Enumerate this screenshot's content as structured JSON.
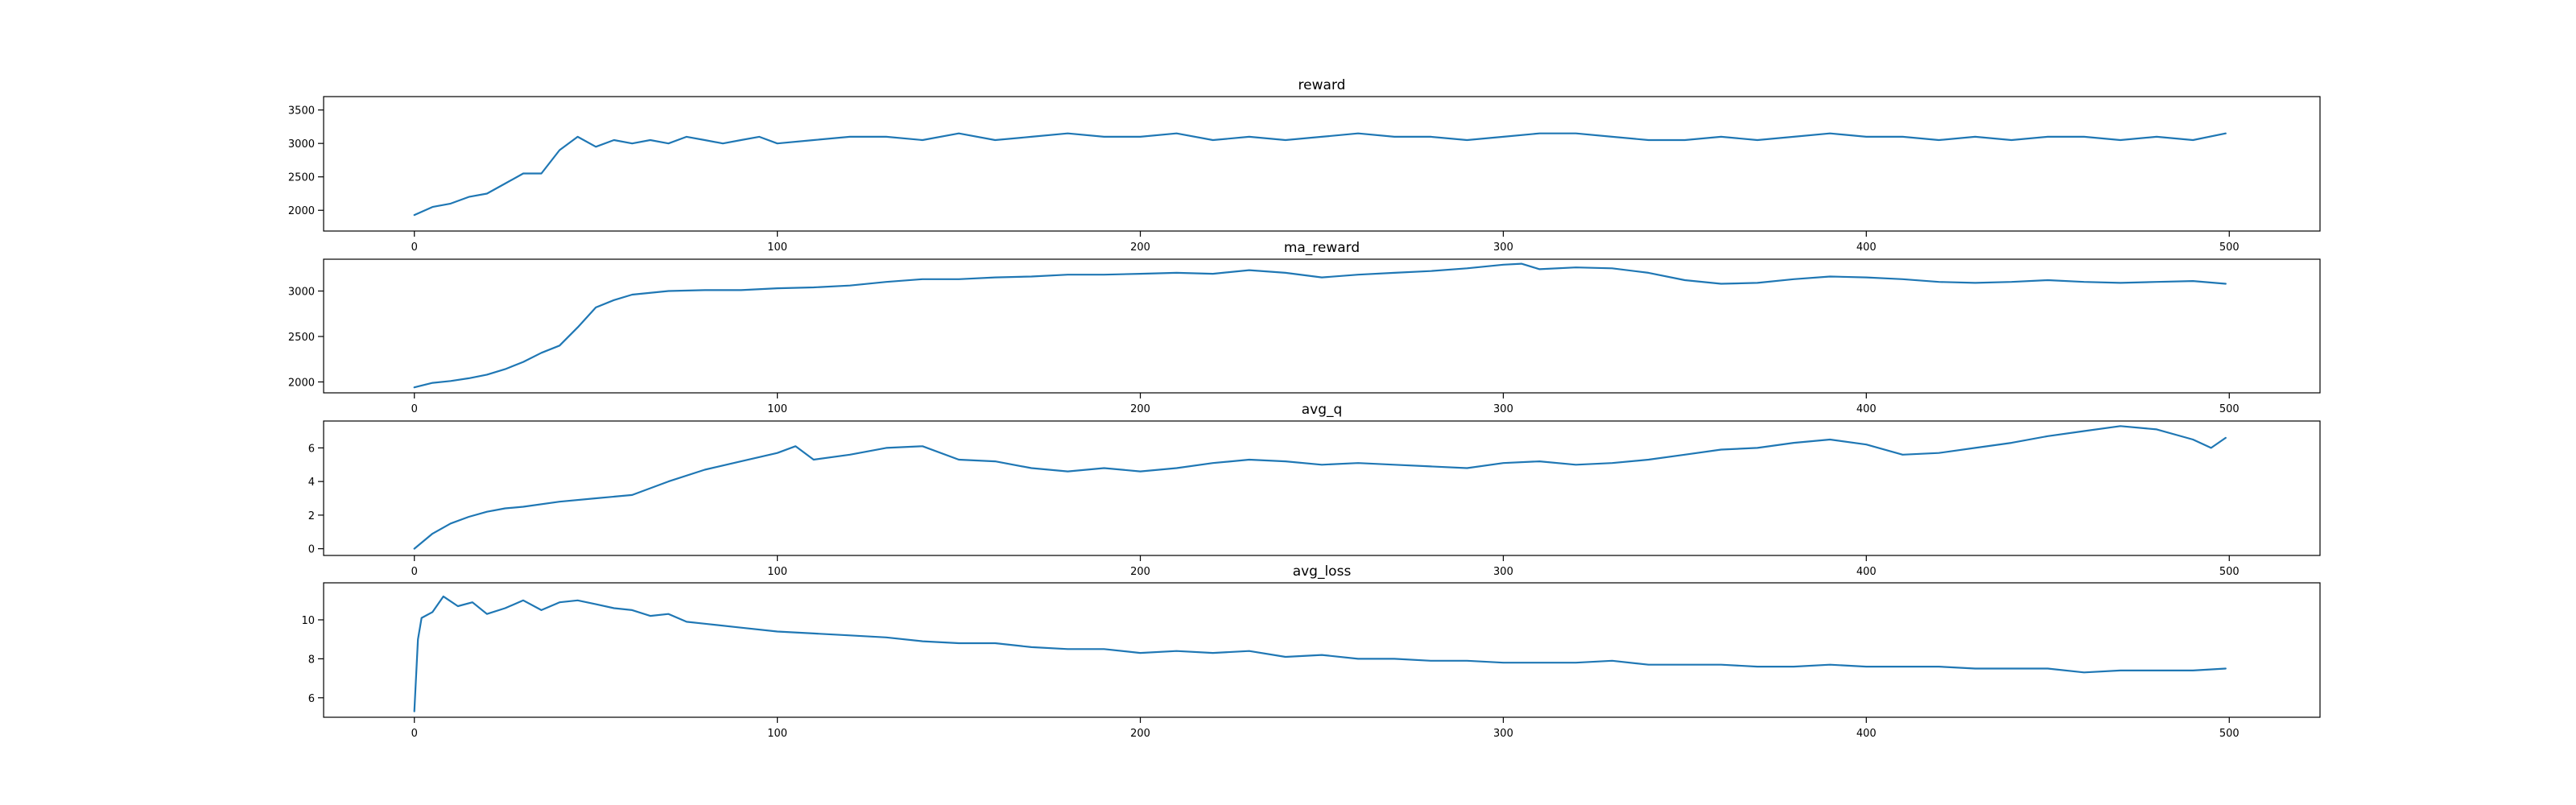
{
  "colors": {
    "series": "#1f77b4",
    "axes": "#000000",
    "background": "#ffffff"
  },
  "chart_data": [
    {
      "type": "line",
      "title": "reward",
      "xlabel": "",
      "ylabel": "",
      "xlim": [
        -25,
        525
      ],
      "ylim": [
        1690,
        3700
      ],
      "xticks": [
        0,
        100,
        200,
        300,
        400,
        500
      ],
      "xtick_labels": [
        "0",
        "100",
        "200",
        "300",
        "400",
        "500"
      ],
      "yticks": [
        2000,
        2500,
        3000,
        3500
      ],
      "ytick_labels": [
        "2000",
        "2500",
        "3000",
        "3500"
      ],
      "grid": false,
      "series": [
        {
          "x": [
            0,
            5,
            10,
            15,
            20,
            25,
            30,
            35,
            40,
            45,
            50,
            55,
            60,
            65,
            70,
            75,
            80,
            85,
            90,
            95,
            100,
            110,
            120,
            130,
            140,
            150,
            160,
            170,
            180,
            190,
            200,
            210,
            220,
            230,
            240,
            250,
            260,
            270,
            280,
            290,
            300,
            310,
            320,
            330,
            340,
            350,
            360,
            370,
            380,
            390,
            400,
            410,
            420,
            430,
            440,
            450,
            460,
            470,
            480,
            490,
            499
          ],
          "y": [
            1930,
            2050,
            2100,
            2200,
            2250,
            2400,
            2550,
            2550,
            2900,
            3100,
            2950,
            3050,
            3000,
            3050,
            3000,
            3100,
            3050,
            3000,
            3050,
            3100,
            3000,
            3050,
            3100,
            3100,
            3050,
            3150,
            3050,
            3100,
            3150,
            3100,
            3100,
            3150,
            3050,
            3100,
            3050,
            3100,
            3150,
            3100,
            3100,
            3050,
            3100,
            3150,
            3150,
            3100,
            3050,
            3050,
            3100,
            3050,
            3100,
            3150,
            3100,
            3100,
            3050,
            3100,
            3050,
            3100,
            3100,
            3050,
            3100,
            3050,
            3150
          ]
        }
      ]
    },
    {
      "type": "line",
      "title": "ma_reward",
      "xlabel": "",
      "ylabel": "",
      "xlim": [
        -25,
        525
      ],
      "ylim": [
        1880,
        3350
      ],
      "xticks": [
        0,
        100,
        200,
        300,
        400,
        500
      ],
      "xtick_labels": [
        "0",
        "100",
        "200",
        "300",
        "400",
        "500"
      ],
      "yticks": [
        2000,
        2500,
        3000
      ],
      "ytick_labels": [
        "2000",
        "2500",
        "3000"
      ],
      "grid": false,
      "series": [
        {
          "x": [
            0,
            5,
            10,
            15,
            20,
            25,
            30,
            35,
            40,
            45,
            50,
            55,
            60,
            70,
            80,
            90,
            100,
            110,
            120,
            130,
            140,
            150,
            160,
            170,
            180,
            190,
            200,
            210,
            220,
            230,
            240,
            250,
            260,
            270,
            280,
            290,
            300,
            305,
            310,
            320,
            330,
            340,
            350,
            360,
            370,
            380,
            390,
            400,
            410,
            420,
            430,
            440,
            450,
            460,
            470,
            480,
            490,
            499
          ],
          "y": [
            1940,
            1990,
            2010,
            2040,
            2080,
            2140,
            2220,
            2320,
            2400,
            2600,
            2820,
            2900,
            2960,
            3000,
            3010,
            3010,
            3030,
            3040,
            3060,
            3100,
            3130,
            3130,
            3150,
            3160,
            3180,
            3180,
            3190,
            3200,
            3190,
            3230,
            3200,
            3150,
            3180,
            3200,
            3220,
            3250,
            3290,
            3300,
            3240,
            3260,
            3250,
            3200,
            3120,
            3080,
            3090,
            3130,
            3160,
            3150,
            3130,
            3100,
            3090,
            3100,
            3120,
            3100,
            3090,
            3100,
            3110,
            3080
          ]
        }
      ]
    },
    {
      "type": "line",
      "title": "avg_q",
      "xlabel": "",
      "ylabel": "",
      "xlim": [
        -25,
        525
      ],
      "ylim": [
        -0.4,
        7.6
      ],
      "xticks": [
        0,
        100,
        200,
        300,
        400,
        500
      ],
      "xtick_labels": [
        "0",
        "100",
        "200",
        "300",
        "400",
        "500"
      ],
      "yticks": [
        0,
        2,
        4,
        6
      ],
      "ytick_labels": [
        "0",
        "2",
        "4",
        "6"
      ],
      "grid": false,
      "series": [
        {
          "x": [
            0,
            5,
            10,
            15,
            20,
            25,
            30,
            40,
            50,
            60,
            70,
            80,
            90,
            100,
            105,
            110,
            120,
            130,
            140,
            150,
            160,
            170,
            180,
            190,
            200,
            210,
            220,
            230,
            240,
            250,
            260,
            270,
            280,
            290,
            300,
            310,
            320,
            330,
            340,
            350,
            360,
            370,
            380,
            390,
            400,
            410,
            420,
            430,
            440,
            450,
            460,
            470,
            480,
            490,
            495,
            499
          ],
          "y": [
            0,
            0.9,
            1.5,
            1.9,
            2.2,
            2.4,
            2.5,
            2.8,
            3.0,
            3.2,
            4.0,
            4.7,
            5.2,
            5.7,
            6.1,
            5.3,
            5.6,
            6.0,
            6.1,
            5.3,
            5.2,
            4.8,
            4.6,
            4.8,
            4.6,
            4.8,
            5.1,
            5.3,
            5.2,
            5.0,
            5.1,
            5.0,
            4.9,
            4.8,
            5.1,
            5.2,
            5.0,
            5.1,
            5.3,
            5.6,
            5.9,
            6.0,
            6.3,
            6.5,
            6.2,
            5.6,
            5.7,
            6.0,
            6.3,
            6.7,
            7.0,
            7.3,
            7.1,
            6.5,
            6.0,
            6.6
          ]
        }
      ]
    },
    {
      "type": "line",
      "title": "avg_loss",
      "xlabel": "",
      "ylabel": "",
      "xlim": [
        -25,
        525
      ],
      "ylim": [
        5.0,
        11.9
      ],
      "xticks": [
        0,
        100,
        200,
        300,
        400,
        500
      ],
      "xtick_labels": [
        "0",
        "100",
        "200",
        "300",
        "400",
        "500"
      ],
      "yticks": [
        6,
        8,
        10
      ],
      "ytick_labels": [
        "6",
        "8",
        "10"
      ],
      "grid": false,
      "series": [
        {
          "x": [
            0,
            1,
            2,
            5,
            8,
            12,
            16,
            20,
            25,
            30,
            35,
            40,
            45,
            50,
            55,
            60,
            65,
            70,
            75,
            80,
            90,
            100,
            110,
            120,
            130,
            140,
            150,
            160,
            170,
            180,
            190,
            200,
            210,
            220,
            230,
            240,
            250,
            260,
            270,
            280,
            290,
            300,
            310,
            320,
            330,
            340,
            350,
            360,
            370,
            380,
            390,
            400,
            410,
            420,
            430,
            440,
            450,
            460,
            470,
            480,
            490,
            499
          ],
          "y": [
            5.3,
            9.0,
            10.1,
            10.4,
            11.2,
            10.7,
            10.9,
            10.3,
            10.6,
            11.0,
            10.5,
            10.9,
            11.0,
            10.8,
            10.6,
            10.5,
            10.2,
            10.3,
            9.9,
            9.8,
            9.6,
            9.4,
            9.3,
            9.2,
            9.1,
            8.9,
            8.8,
            8.8,
            8.6,
            8.5,
            8.5,
            8.3,
            8.4,
            8.3,
            8.4,
            8.1,
            8.2,
            8.0,
            8.0,
            7.9,
            7.9,
            7.8,
            7.8,
            7.8,
            7.9,
            7.7,
            7.7,
            7.7,
            7.6,
            7.6,
            7.7,
            7.6,
            7.6,
            7.6,
            7.5,
            7.5,
            7.5,
            7.3,
            7.4,
            7.4,
            7.4,
            7.5
          ]
        }
      ]
    }
  ]
}
